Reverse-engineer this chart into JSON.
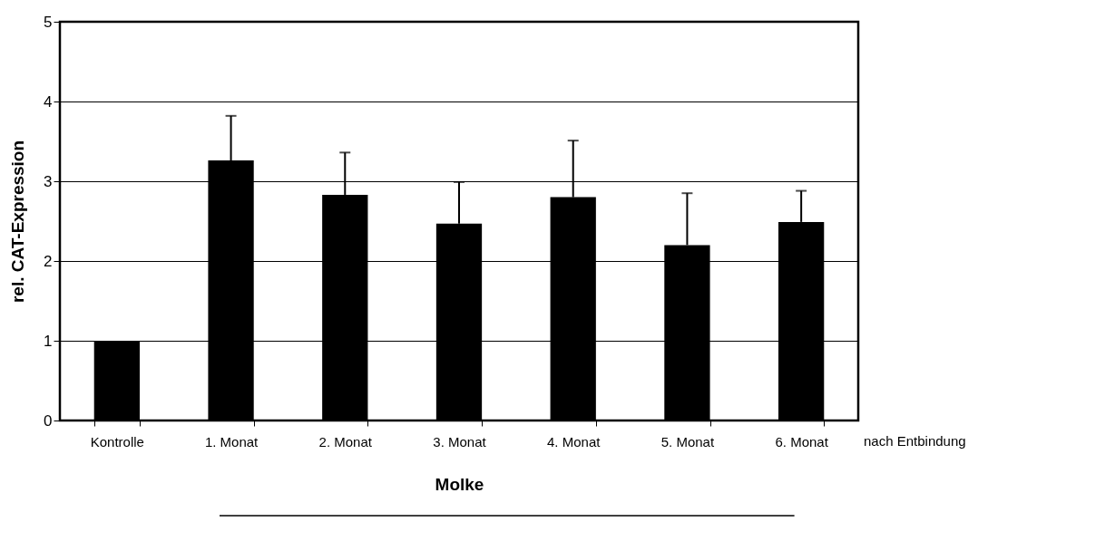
{
  "chart_data": {
    "type": "bar",
    "categories": [
      "Kontrolle",
      "1. Monat",
      "2. Monat",
      "3. Monat",
      "4. Monat",
      "5. Monat",
      "6. Monat"
    ],
    "values": [
      1.0,
      3.26,
      2.83,
      2.47,
      2.8,
      2.2,
      2.49
    ],
    "errors": [
      null,
      [
        3.26,
        3.82
      ],
      [
        2.83,
        3.36
      ],
      [
        2.47,
        2.99
      ],
      [
        2.8,
        3.51
      ],
      [
        2.2,
        2.85
      ],
      [
        2.49,
        2.88
      ]
    ],
    "color": "#000000",
    "ylabel": "rel. CAT-Expression",
    "xlabel": "Molke",
    "annotations": [
      "nach Entbindung"
    ],
    "ylim": [
      0,
      5
    ],
    "yticks": [
      0,
      1,
      2,
      3,
      4,
      5
    ],
    "grid": "y"
  }
}
